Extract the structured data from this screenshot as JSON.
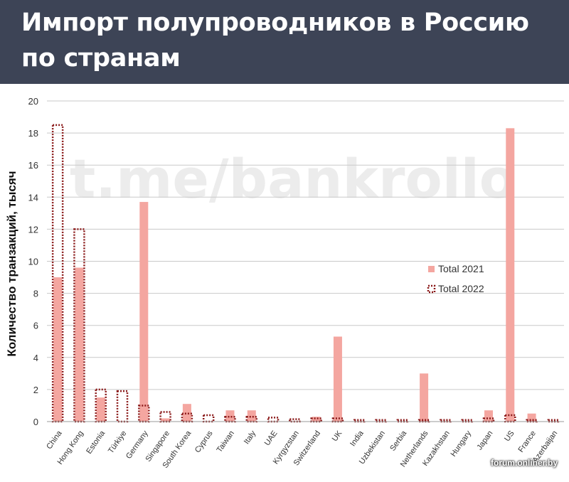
{
  "header": {
    "title_line1": "Импорт полупроводников в Россию",
    "title_line2": "по странам"
  },
  "watermark": "t.me/bankrollo",
  "credit": "forum.onliner.by",
  "chart_data": {
    "type": "bar",
    "ylabel": "Количество транзакций, тысяч",
    "ylim": [
      0,
      20
    ],
    "yticks": [
      0,
      2,
      4,
      6,
      8,
      10,
      12,
      14,
      16,
      18,
      20
    ],
    "grid": true,
    "legend_position": "right",
    "categories": [
      "China",
      "Hong Kong",
      "Estonia",
      "Türkiye",
      "Germany",
      "Singapore",
      "South Korea",
      "Cyprus",
      "Taiwan",
      "Italy",
      "UAE",
      "Kyrgyzstan",
      "Switzerland",
      "UK",
      "India",
      "Uzbekistan",
      "Serbia",
      "Netherlands",
      "Kazakhstan",
      "Hungary",
      "Japan",
      "US",
      "France",
      "Azerbaijan"
    ],
    "series": [
      {
        "name": "Total 2021",
        "style": "solid",
        "color": "#f4a6a0",
        "values": [
          9.0,
          9.6,
          1.5,
          0.0,
          13.7,
          0.2,
          1.1,
          0.0,
          0.7,
          0.7,
          0.0,
          0.0,
          0.3,
          5.3,
          0.0,
          0.0,
          0.0,
          3.0,
          0.0,
          0.0,
          0.7,
          18.3,
          0.5,
          0.0
        ]
      },
      {
        "name": "Total 2022",
        "style": "dotted-outline",
        "color": "#8b1a1a",
        "values": [
          18.5,
          12.0,
          2.0,
          1.9,
          1.0,
          0.6,
          0.5,
          0.4,
          0.3,
          0.3,
          0.25,
          0.15,
          0.2,
          0.2,
          0.1,
          0.1,
          0.1,
          0.1,
          0.1,
          0.1,
          0.2,
          0.4,
          0.1,
          0.1
        ]
      }
    ]
  }
}
